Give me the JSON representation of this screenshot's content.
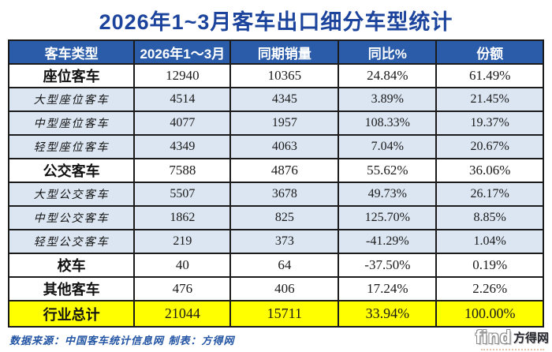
{
  "title": "2026年1~3月客车出口细分车型统计",
  "chart_data": {
    "type": "table",
    "title": "2026年1~3月客车出口细分车型统计",
    "columns": [
      "客车类型",
      "2026年1～3月",
      "同期销量",
      "同比%",
      "份额"
    ],
    "rows": [
      {
        "type": "main",
        "cells": [
          "座位客车",
          "12940",
          "10365",
          "24.84%",
          "61.49%"
        ]
      },
      {
        "type": "sub",
        "cells": [
          "大型座位客车",
          "4514",
          "4345",
          "3.89%",
          "21.45%"
        ]
      },
      {
        "type": "sub",
        "cells": [
          "中型座位客车",
          "4077",
          "1957",
          "108.33%",
          "19.37%"
        ]
      },
      {
        "type": "sub",
        "cells": [
          "轻型座位客车",
          "4349",
          "4063",
          "7.04%",
          "20.67%"
        ]
      },
      {
        "type": "main",
        "cells": [
          "公交客车",
          "7588",
          "4876",
          "55.62%",
          "36.06%"
        ]
      },
      {
        "type": "sub",
        "cells": [
          "大型公交客车",
          "5507",
          "3678",
          "49.73%",
          "26.17%"
        ]
      },
      {
        "type": "sub",
        "cells": [
          "中型公交客车",
          "1862",
          "825",
          "125.70%",
          "8.85%"
        ]
      },
      {
        "type": "sub",
        "cells": [
          "轻型公交客车",
          "219",
          "373",
          "-41.29%",
          "1.04%"
        ]
      },
      {
        "type": "main",
        "cells": [
          "校车",
          "40",
          "64",
          "-37.50%",
          "0.19%"
        ]
      },
      {
        "type": "main",
        "cells": [
          "其他客车",
          "476",
          "406",
          "17.24%",
          "2.26%"
        ]
      },
      {
        "type": "total",
        "cells": [
          "行业总计",
          "21044",
          "15711",
          "33.94%",
          "100.00%"
        ]
      }
    ],
    "column_widths_percent": [
      23.5,
      18.0,
      20.2,
      18.3,
      20.0
    ]
  },
  "footer": {
    "source": "数据来源：中国客车统计信息网  制表：方得网"
  },
  "logo": {
    "find": "find",
    "name": "方得网"
  },
  "colors": {
    "title_blue": "#1c449c",
    "header_bg": "#2b5ca9",
    "header_text": "#ffffff",
    "subrow_bg": "#dce6f2",
    "total_bg": "#ffff00",
    "border": "#1b1b1b",
    "footer_blue": "#2254a3"
  }
}
